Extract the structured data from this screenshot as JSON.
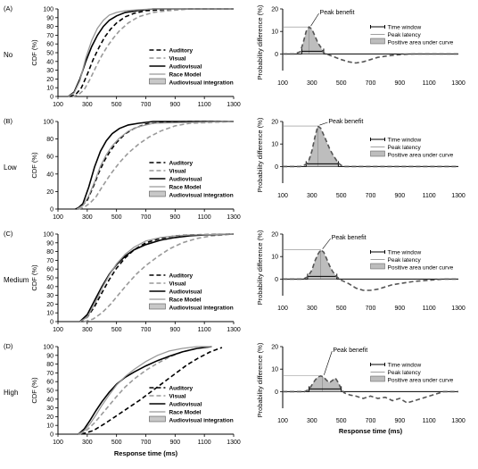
{
  "chart_data": [
    {
      "panel": "(A)",
      "row_label": "No",
      "type": "line",
      "xlabel": "",
      "ylabel": "CDF (%)",
      "xlim": [
        100,
        1300
      ],
      "ylim": [
        0,
        100
      ],
      "xticks": [
        "100",
        "300",
        "500",
        "700",
        "900",
        "1100",
        "1300"
      ],
      "yticks": [
        "0",
        "10",
        "20",
        "30",
        "40",
        "50",
        "60",
        "70",
        "80",
        "90",
        "100"
      ],
      "legend": [
        "Auditory",
        "Visual",
        "Audiovisual",
        "Race Model",
        "Audiovisual integration"
      ],
      "series": [
        {
          "name": "Auditory",
          "x": [
            180,
            220,
            260,
            300,
            340,
            380,
            420,
            460,
            500,
            560,
            620,
            700,
            800,
            1000,
            1300
          ],
          "values": [
            0,
            2,
            10,
            25,
            42,
            56,
            68,
            77,
            84,
            91,
            95,
            98,
            99,
            100,
            100
          ]
        },
        {
          "name": "Visual",
          "x": [
            200,
            240,
            280,
            320,
            360,
            400,
            440,
            480,
            520,
            580,
            650,
            750,
            850,
            1000,
            1300
          ],
          "values": [
            0,
            2,
            8,
            20,
            34,
            47,
            58,
            67,
            75,
            84,
            91,
            96,
            98,
            100,
            100
          ]
        },
        {
          "name": "Audiovisual",
          "x": [
            170,
            210,
            250,
            290,
            330,
            370,
            410,
            450,
            500,
            560,
            640,
            750,
            1300
          ],
          "values": [
            0,
            5,
            20,
            40,
            57,
            70,
            80,
            87,
            92,
            96,
            98,
            100,
            100
          ]
        },
        {
          "name": "Race Model",
          "x": [
            170,
            210,
            250,
            290,
            330,
            370,
            410,
            450,
            500,
            560,
            640,
            750,
            1300
          ],
          "values": [
            0,
            4,
            18,
            44,
            64,
            78,
            87,
            93,
            96,
            98,
            99,
            100,
            100
          ]
        }
      ]
    },
    {
      "panel": "(A)",
      "type": "line",
      "xlabel": "",
      "ylabel": "Probability difference (%)",
      "xlim": [
        100,
        1300
      ],
      "ylim": [
        0,
        20
      ],
      "xticks": [
        "100",
        "300",
        "500",
        "700",
        "900",
        "1100",
        "1300"
      ],
      "yticks": [
        "0",
        "10",
        "20"
      ],
      "legend": [
        "Time window",
        "Peak latency",
        "Positive area under curve"
      ],
      "annotation": "Peak benefit",
      "peak_benefit": 12,
      "peak_latency": 280,
      "time_window": [
        230,
        380
      ],
      "series": [
        {
          "name": "Probability difference",
          "x": [
            100,
            180,
            220,
            240,
            260,
            280,
            300,
            320,
            340,
            360,
            380,
            420,
            460,
            500,
            550,
            600,
            650,
            700,
            750,
            800,
            850,
            900,
            950,
            1000,
            1100,
            1200,
            1300
          ],
          "values": [
            0,
            0,
            1,
            5,
            10,
            12,
            11,
            8,
            5,
            3,
            0.5,
            -0.5,
            -1.5,
            -2.5,
            -3.5,
            -4,
            -3.5,
            -2.5,
            -1.5,
            -1,
            -0.6,
            -0.3,
            -0.1,
            0,
            0,
            0,
            0
          ]
        }
      ]
    },
    {
      "panel": "(B)",
      "row_label": "Low",
      "type": "line",
      "xlabel": "",
      "ylabel": "CDF (%)",
      "xlim": [
        100,
        1300
      ],
      "ylim": [
        0,
        100
      ],
      "xticks": [
        "100",
        "300",
        "500",
        "700",
        "900",
        "1100",
        "1300"
      ],
      "yticks": [
        "0",
        "20",
        "40",
        "60",
        "80",
        "100"
      ],
      "legend": [
        "Auditory",
        "Visual",
        "Audiovisual",
        "Race Model",
        "Audiovisual integration"
      ],
      "series": [
        {
          "name": "Auditory",
          "x": [
            220,
            260,
            300,
            340,
            380,
            420,
            460,
            500,
            560,
            620,
            700,
            800,
            1000,
            1300
          ],
          "values": [
            0,
            3,
            10,
            25,
            42,
            56,
            67,
            76,
            86,
            92,
            97,
            99,
            100,
            100
          ]
        },
        {
          "name": "Visual",
          "x": [
            240,
            280,
            320,
            360,
            400,
            460,
            520,
            580,
            650,
            720,
            800,
            900,
            1000,
            1300
          ],
          "values": [
            0,
            2,
            7,
            14,
            25,
            40,
            53,
            64,
            74,
            82,
            89,
            95,
            98,
            100
          ]
        },
        {
          "name": "Audiovisual",
          "x": [
            230,
            270,
            310,
            350,
            390,
            430,
            470,
            520,
            580,
            650,
            750,
            1300
          ],
          "values": [
            0,
            6,
            25,
            48,
            66,
            78,
            86,
            92,
            96,
            98,
            100,
            100
          ]
        },
        {
          "name": "Race Model",
          "x": [
            230,
            270,
            310,
            350,
            390,
            430,
            470,
            520,
            580,
            650,
            750,
            1300
          ],
          "values": [
            0,
            4,
            15,
            31,
            49,
            62,
            72,
            81,
            89,
            94,
            98,
            100
          ]
        }
      ]
    },
    {
      "panel": "(B)",
      "type": "line",
      "xlabel": "",
      "ylabel": "Probability difference (%)",
      "xlim": [
        100,
        1300
      ],
      "ylim": [
        0,
        20
      ],
      "xticks": [
        "100",
        "300",
        "500",
        "700",
        "900",
        "1100",
        "1300"
      ],
      "yticks": [
        "0",
        "10",
        "20"
      ],
      "legend": [
        "Time window",
        "Peak latency",
        "Positive area under curve"
      ],
      "annotation": "Peak benefit",
      "peak_benefit": 18,
      "peak_latency": 340,
      "time_window": [
        260,
        480
      ],
      "series": [
        {
          "name": "Probability difference",
          "x": [
            100,
            220,
            260,
            280,
            300,
            320,
            340,
            360,
            380,
            400,
            420,
            440,
            460,
            480,
            500,
            520,
            560,
            600,
            700,
            800,
            900,
            1000,
            1100,
            1200,
            1300
          ],
          "values": [
            0,
            0,
            1,
            3,
            7,
            13,
            18,
            17,
            14,
            11,
            8,
            5.5,
            3.5,
            1.5,
            0.5,
            0,
            0,
            0,
            0,
            0,
            0,
            0,
            0,
            0,
            0
          ]
        }
      ]
    },
    {
      "panel": "(C)",
      "row_label": "Medium",
      "type": "line",
      "xlabel": "",
      "ylabel": "CDF (%)",
      "xlim": [
        100,
        1300
      ],
      "ylim": [
        0,
        100
      ],
      "xticks": [
        "100",
        "300",
        "500",
        "700",
        "900",
        "1100",
        "1300"
      ],
      "yticks": [
        "0",
        "10",
        "20",
        "30",
        "40",
        "50",
        "60",
        "70",
        "80",
        "90",
        "100"
      ],
      "legend": [
        "Auditory",
        "Visual",
        "Audiovisual",
        "Race Model",
        "Audiovisual integration"
      ],
      "series": [
        {
          "name": "Auditory",
          "x": [
            250,
            300,
            350,
            400,
            450,
            500,
            560,
            620,
            700,
            800,
            900,
            1000,
            1300
          ],
          "values": [
            0,
            5,
            17,
            33,
            48,
            61,
            73,
            82,
            90,
            95,
            98,
            99,
            100
          ]
        },
        {
          "name": "Visual",
          "x": [
            280,
            340,
            400,
            460,
            520,
            580,
            640,
            700,
            780,
            860,
            950,
            1050,
            1150,
            1300
          ],
          "values": [
            0,
            3,
            10,
            20,
            32,
            44,
            55,
            64,
            74,
            83,
            90,
            95,
            98,
            100
          ]
        },
        {
          "name": "Audiovisual",
          "x": [
            250,
            300,
            350,
            400,
            450,
            500,
            560,
            620,
            700,
            800,
            900,
            1000,
            1100,
            1300
          ],
          "values": [
            0,
            8,
            24,
            40,
            54,
            65,
            75,
            82,
            88,
            93,
            96,
            98,
            99,
            100
          ]
        },
        {
          "name": "Race Model",
          "x": [
            250,
            300,
            350,
            400,
            450,
            500,
            560,
            620,
            700,
            800,
            900,
            1000,
            1300
          ],
          "values": [
            0,
            5,
            20,
            38,
            53,
            66,
            77,
            85,
            92,
            96,
            98,
            99,
            100
          ]
        }
      ]
    },
    {
      "panel": "(C)",
      "type": "line",
      "xlabel": "",
      "ylabel": "Probability difference (%)",
      "xlim": [
        100,
        1300
      ],
      "ylim": [
        0,
        20
      ],
      "xticks": [
        "100",
        "300",
        "500",
        "700",
        "900",
        "1100",
        "1300"
      ],
      "yticks": [
        "0",
        "10",
        "20"
      ],
      "legend": [
        "Time window",
        "Peak latency",
        "Positive area under curve"
      ],
      "annotation": "Peak benefit",
      "peak_benefit": 13,
      "peak_latency": 360,
      "time_window": [
        270,
        470
      ],
      "series": [
        {
          "name": "Probability difference",
          "x": [
            100,
            240,
            270,
            300,
            320,
            340,
            360,
            380,
            400,
            420,
            440,
            470,
            500,
            550,
            600,
            650,
            700,
            750,
            800,
            850,
            900,
            950,
            1000,
            1100,
            1200,
            1300
          ],
          "values": [
            0,
            0,
            1,
            4,
            8,
            11,
            13,
            12,
            9,
            6,
            3.5,
            1,
            -0.5,
            -2,
            -4,
            -5,
            -5,
            -4.5,
            -3.5,
            -2.5,
            -2,
            -1.5,
            -1,
            -0.5,
            0,
            0
          ]
        }
      ]
    },
    {
      "panel": "(D)",
      "row_label": "High",
      "type": "line",
      "xlabel": "Response time (ms)",
      "ylabel": "CDF (%)",
      "xlim": [
        100,
        1300
      ],
      "ylim": [
        0,
        100
      ],
      "xticks": [
        "100",
        "300",
        "500",
        "700",
        "900",
        "1100",
        "1300"
      ],
      "yticks": [
        "0",
        "10",
        "20",
        "30",
        "40",
        "50",
        "60",
        "70",
        "80",
        "90",
        "100"
      ],
      "legend": [
        "Auditory",
        "Visual",
        "Audiovisual",
        "Race Model",
        "Audiovisual integration"
      ],
      "series": [
        {
          "name": "Auditory",
          "x": [
            260,
            340,
            420,
            500,
            580,
            660,
            740,
            820,
            900,
            980,
            1060,
            1140,
            1220
          ],
          "values": [
            0,
            4,
            12,
            21,
            30,
            39,
            49,
            59,
            69,
            79,
            87,
            94,
            99
          ]
        },
        {
          "name": "Visual",
          "x": [
            250,
            300,
            350,
            400,
            450,
            500,
            560,
            620,
            700,
            780,
            860,
            950,
            1050,
            1150
          ],
          "values": [
            0,
            5,
            13,
            23,
            33,
            43,
            54,
            63,
            73,
            81,
            88,
            94,
            98,
            100
          ]
        },
        {
          "name": "Audiovisual",
          "x": [
            240,
            280,
            320,
            360,
            400,
            450,
            500,
            560,
            620,
            700,
            780,
            860,
            950,
            1050,
            1150
          ],
          "values": [
            0,
            6,
            16,
            27,
            37,
            48,
            57,
            65,
            71,
            78,
            84,
            89,
            94,
            98,
            100
          ]
        },
        {
          "name": "Race Model",
          "x": [
            240,
            280,
            320,
            360,
            400,
            450,
            500,
            560,
            620,
            700,
            780,
            860,
            950,
            1050,
            1150
          ],
          "values": [
            0,
            4,
            12,
            22,
            33,
            45,
            56,
            66,
            74,
            83,
            90,
            95,
            98,
            100,
            100
          ]
        }
      ]
    },
    {
      "panel": "(D)",
      "type": "line",
      "xlabel": "Response time (ms)",
      "ylabel": "Probability difference (%)",
      "xlim": [
        100,
        1300
      ],
      "ylim": [
        0,
        20
      ],
      "xticks": [
        "100",
        "300",
        "500",
        "700",
        "900",
        "1100",
        "1300"
      ],
      "yticks": [
        "0",
        "10",
        "20"
      ],
      "legend": [
        "Time window",
        "Peak latency",
        "Positive area under curve"
      ],
      "annotation": "Peak benefit",
      "peak_benefit": 7,
      "peak_latency": 370,
      "time_window": [
        280,
        500
      ],
      "series": [
        {
          "name": "Probability difference",
          "x": [
            100,
            250,
            280,
            300,
            320,
            340,
            360,
            380,
            400,
            420,
            440,
            460,
            480,
            500,
            520,
            560,
            600,
            650,
            700,
            750,
            800,
            850,
            900,
            950,
            1000,
            1050,
            1100,
            1150,
            1200,
            1300
          ],
          "values": [
            0,
            0,
            1,
            3,
            5,
            6.5,
            7,
            6.5,
            5,
            4,
            5,
            6,
            4,
            1,
            -0.5,
            -1.5,
            -2,
            -3,
            -2,
            -3,
            -2.5,
            -4,
            -3,
            -5,
            -4,
            -3,
            -2,
            -1,
            0,
            0
          ]
        }
      ]
    }
  ]
}
